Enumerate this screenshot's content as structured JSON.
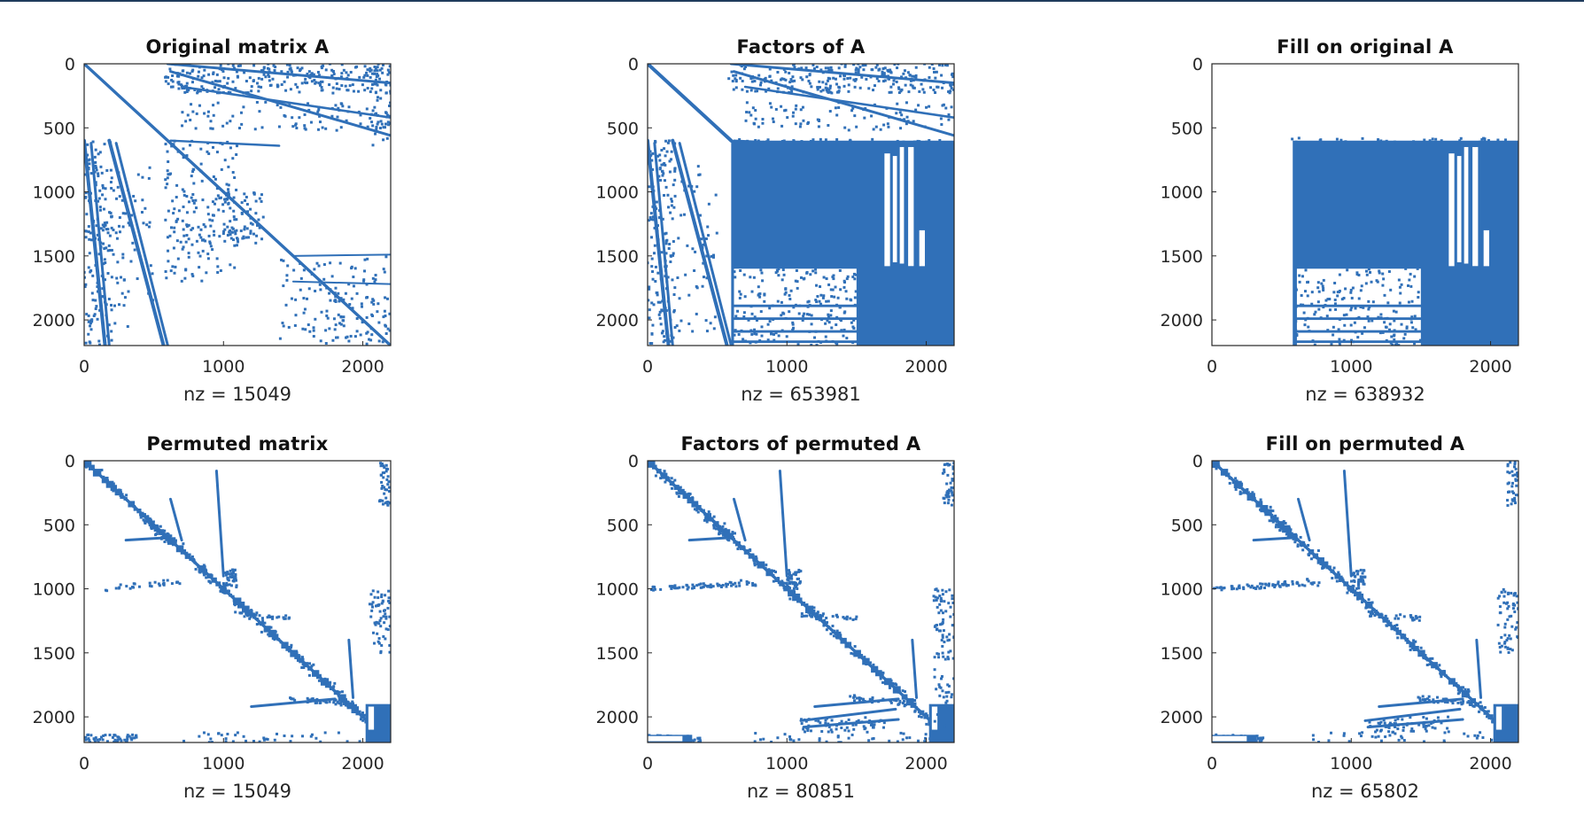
{
  "chart_data": [
    {
      "type": "scatter",
      "title": "Original matrix A",
      "xlabel": "nz = 15049",
      "xlim": [
        0,
        2200
      ],
      "ylim": [
        0,
        2200
      ],
      "y_reversed": true,
      "xticks": [
        "0",
        "1000",
        "2000"
      ],
      "yticks": [
        "0",
        "500",
        "1000",
        "1500",
        "2000"
      ],
      "pattern": "original"
    },
    {
      "type": "scatter",
      "title": "Factors of A",
      "xlabel": "nz = 653981",
      "xlim": [
        0,
        2200
      ],
      "ylim": [
        0,
        2200
      ],
      "y_reversed": true,
      "xticks": [
        "0",
        "1000",
        "2000"
      ],
      "yticks": [
        "0",
        "500",
        "1000",
        "1500",
        "2000"
      ],
      "pattern": "factors"
    },
    {
      "type": "scatter",
      "title": "Fill on original A",
      "xlabel": "nz = 638932",
      "xlim": [
        0,
        2200
      ],
      "ylim": [
        0,
        2200
      ],
      "y_reversed": true,
      "xticks": [
        "0",
        "1000",
        "2000"
      ],
      "yticks": [
        "0",
        "500",
        "1000",
        "1500",
        "2000"
      ],
      "pattern": "fill"
    },
    {
      "type": "scatter",
      "title": "Permuted matrix",
      "xlabel": "nz = 15049",
      "xlim": [
        0,
        2200
      ],
      "ylim": [
        0,
        2200
      ],
      "y_reversed": true,
      "xticks": [
        "0",
        "1000",
        "2000"
      ],
      "yticks": [
        "0",
        "500",
        "1000",
        "1500",
        "2000"
      ],
      "pattern": "permuted"
    },
    {
      "type": "scatter",
      "title": "Factors of permuted A",
      "xlabel": "nz = 80851",
      "xlim": [
        0,
        2200
      ],
      "ylim": [
        0,
        2200
      ],
      "y_reversed": true,
      "xticks": [
        "0",
        "1000",
        "2000"
      ],
      "yticks": [
        "0",
        "500",
        "1000",
        "1500",
        "2000"
      ],
      "pattern": "permuted_factors"
    },
    {
      "type": "scatter",
      "title": "Fill on permuted A",
      "xlabel": "nz = 65802",
      "xlim": [
        0,
        2200
      ],
      "ylim": [
        0,
        2200
      ],
      "y_reversed": true,
      "xticks": [
        "0",
        "1000",
        "2000"
      ],
      "yticks": [
        "0",
        "500",
        "1000",
        "1500",
        "2000"
      ],
      "pattern": "permuted_fill"
    }
  ],
  "colors": {
    "marker": "#3070b8",
    "axes": "#262626",
    "title": "#111111",
    "top_rule": "#1f3b5c"
  }
}
